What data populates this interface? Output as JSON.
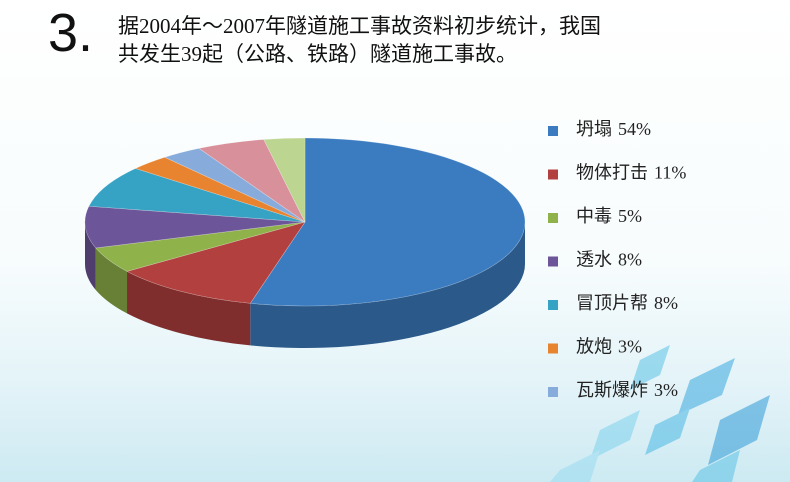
{
  "chart_data": {
    "type": "pie",
    "title_number": "3.",
    "title_lines": [
      "据2004年～2007年隧道施工事故资料初步统计，我国",
      "共发生39起（公路、铁路）隧道施工事故。"
    ],
    "categories": [
      "坍塌",
      "物体打击",
      "中毒",
      "透水",
      "冒顶片帮",
      "放炮",
      "瓦斯爆炸",
      null,
      null
    ],
    "values": [
      54,
      11,
      5,
      8,
      8,
      3,
      3,
      5,
      3
    ],
    "value_labels": [
      "54%",
      "11%",
      "5%",
      "8%",
      "8%",
      "3%",
      "3%",
      null,
      null
    ],
    "colors": [
      "#3b7cc0",
      "#b2403e",
      "#8fb24b",
      "#6c5598",
      "#36a2c4",
      "#e8832f",
      "#87abdb",
      "#d8919b",
      "#bcd590"
    ],
    "legend": "right"
  }
}
